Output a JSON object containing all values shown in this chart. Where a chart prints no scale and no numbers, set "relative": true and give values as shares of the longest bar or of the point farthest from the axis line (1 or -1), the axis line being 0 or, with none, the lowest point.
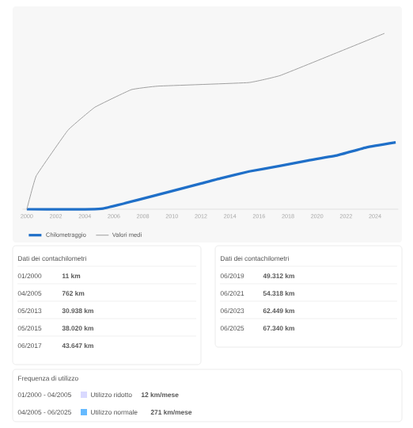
{
  "chart_data": {
    "type": "line",
    "relative": true,
    "xlim": [
      1999.7,
      2025.6
    ],
    "xticks": [
      2000,
      2002,
      2004,
      2006,
      2008,
      2010,
      2012,
      2014,
      2016,
      2018,
      2020,
      2022,
      2024
    ],
    "legend": "bottom left",
    "series": [
      {
        "name": "Chilometraggio",
        "color": "#1f6fc8",
        "x": [
          2000.0,
          2005.25,
          2013.33,
          2015.33,
          2017.42,
          2019.42,
          2021.42,
          2023.42,
          2025.42
        ],
        "values": [
          0.0,
          0.004,
          0.175,
          0.215,
          0.246,
          0.278,
          0.307,
          0.352,
          0.38
        ]
      },
      {
        "name": "Valori medi",
        "color": "#a0a0a0",
        "x": [
          2000.0,
          2000.65,
          2002.84,
          2004.69,
          2007.2,
          2009.05,
          2015.27,
          2017.45,
          2021.37,
          2024.65
        ],
        "values": [
          0.0,
          0.19,
          0.45,
          0.58,
          0.68,
          0.7,
          0.72,
          0.76,
          0.89,
          1.0
        ]
      }
    ],
    "annotations": [
      "Dati dei contachilometri",
      "01/2000",
      "11 km",
      "04/2005",
      "762 km",
      "05/2013",
      "30.938 km",
      "05/2015",
      "38.020 km",
      "06/2017",
      "43.647 km",
      "Dati dei contachilometri",
      "06/2019",
      "49.312 km",
      "06/2021",
      "54.318 km",
      "06/2023",
      "62.449 km",
      "06/2025",
      "67.340 km",
      "Frequenza di utilizzo",
      "01/2000 - 04/2005",
      "Utilizzo ridotto",
      "12 km/mese",
      "04/2005 - 06/2025",
      "Utilizzo normale",
      "271 km/mese"
    ]
  }
}
